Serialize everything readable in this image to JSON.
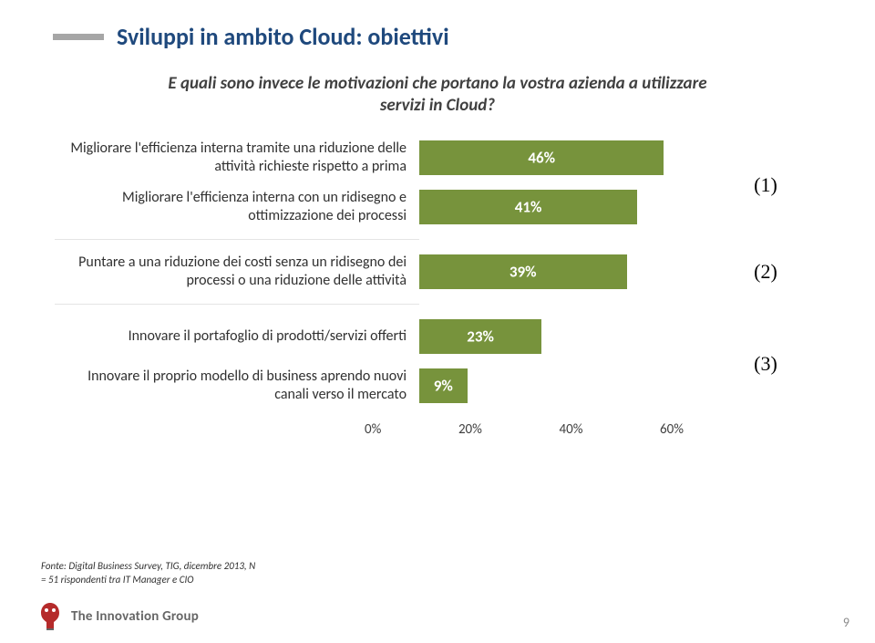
{
  "title": "Sviluppi in ambito Cloud: obiettivi",
  "subtitle": "E quali sono invece le motivazioni che portano la vostra azienda a utilizzare servizi in Cloud?",
  "chart": {
    "type": "bar",
    "bar_color": "#77933c",
    "bar_label_color": "#ffffff",
    "label_fontsize": 16,
    "value_fontsize": 17,
    "annot_fontsize": 22,
    "xlim": [
      0,
      60
    ],
    "xtick_step": 20,
    "xticks": [
      "0%",
      "20%",
      "40%",
      "60%"
    ],
    "groups": [
      {
        "annotation": "(1)",
        "items": [
          {
            "label": "Migliorare l'efficienza interna tramite una riduzione delle attività richieste rispetto a prima",
            "value": 46,
            "display": "46%"
          },
          {
            "label": "Migliorare l'efficienza interna con un ridisegno e ottimizzazione dei processi",
            "value": 41,
            "display": "41%"
          }
        ]
      },
      {
        "annotation": "(2)",
        "items": [
          {
            "label": "Puntare a una riduzione dei costi senza un ridisegno dei processi o una riduzione delle attività",
            "value": 39,
            "display": "39%"
          }
        ]
      },
      {
        "annotation": "(3)",
        "items": [
          {
            "label": "Innovare il portafoglio di prodotti/servizi offerti",
            "value": 23,
            "display": "23%"
          },
          {
            "label": "Innovare il proprio modello di business aprendo nuovi canali verso il mercato",
            "value": 9,
            "display": "9%"
          }
        ]
      }
    ]
  },
  "footnote": "Fonte: Digital Business Survey, TIG, dicembre 2013, N = 51 rispondenti tra IT Manager e CIO",
  "logo_text": "The Innovation Group",
  "page_number": "9"
}
